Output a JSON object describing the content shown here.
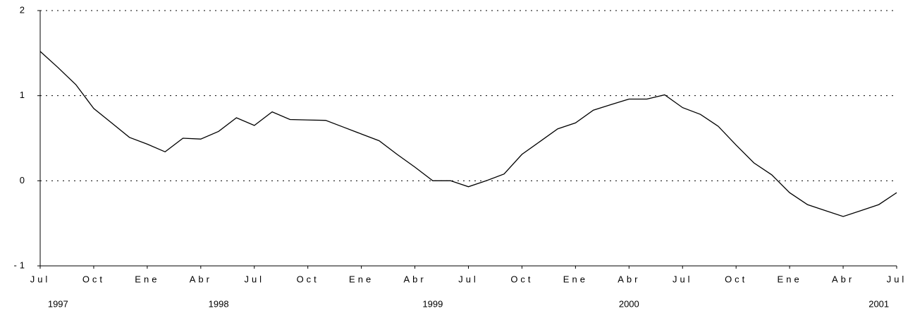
{
  "chart_data": {
    "type": "line",
    "categories": [
      "Jul",
      null,
      null,
      "Oct",
      null,
      null,
      "Ene",
      null,
      null,
      "Abr",
      null,
      null,
      "Jul",
      null,
      null,
      "Oct",
      null,
      null,
      "Ene",
      null,
      null,
      "Abr",
      null,
      null,
      "Jul",
      null,
      null,
      "Oct",
      null,
      null,
      "Ene",
      null,
      null,
      "Abr",
      null,
      null,
      "Jul",
      null,
      null,
      "Oct",
      null,
      null,
      "Ene",
      null,
      null,
      "Abr",
      null,
      null,
      "Jul"
    ],
    "year_labels": [
      null,
      "1997",
      null,
      null,
      null,
      null,
      null,
      null,
      null,
      null,
      "1998",
      null,
      null,
      null,
      null,
      null,
      null,
      null,
      null,
      null,
      null,
      null,
      "1999",
      null,
      null,
      null,
      null,
      null,
      null,
      null,
      null,
      null,
      null,
      "2000",
      null,
      null,
      null,
      null,
      null,
      null,
      null,
      null,
      null,
      null,
      null,
      null,
      null,
      "2001",
      null
    ],
    "series": [
      {
        "color": "#000000",
        "values": [
          1.52,
          1.33,
          1.13,
          0.85,
          0.68,
          0.51,
          0.43,
          0.34,
          0.5,
          0.49,
          0.58,
          0.74,
          0.65,
          0.81,
          0.72,
          0.715,
          0.71,
          0.63,
          0.55,
          0.47,
          0.31,
          0.16,
          0,
          0,
          -0.07,
          0.0,
          0.08,
          0.31,
          0.46,
          0.61,
          0.68,
          0.83,
          0.895,
          0.96,
          0.96,
          1.01,
          0.86,
          0.78,
          0.64,
          0.42,
          0.21,
          0.07,
          -0.14,
          -0.28,
          -0.35,
          -0.42,
          -0.35,
          -0.28,
          -0.14
        ]
      }
    ],
    "ylim": [
      -1,
      2
    ],
    "yticks": [
      -1,
      0,
      1,
      2
    ],
    "grid": true
  }
}
